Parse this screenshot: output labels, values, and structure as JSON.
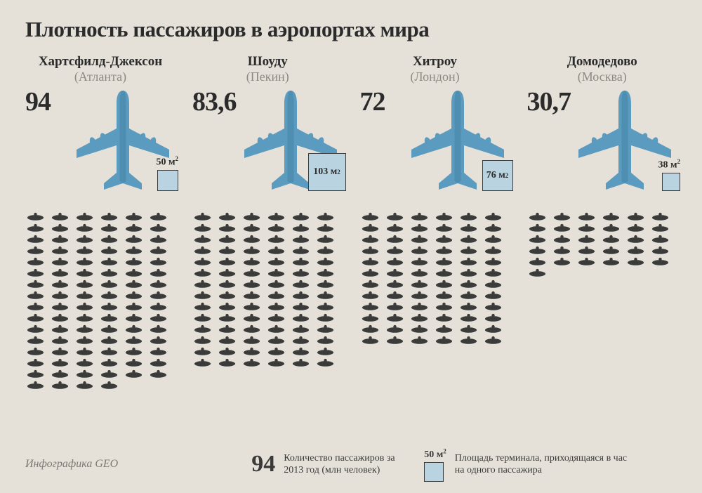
{
  "title": "Плотность пассажиров в аэропортах мира",
  "colors": {
    "background": "#e5e1d8",
    "text": "#2b2b2b",
    "muted": "#8c8a84",
    "plane": "#5a9bbf",
    "plane_dark": "#3d7a9a",
    "area_box_fill": "#b9d4e0",
    "area_box_border": "#3a3a3a",
    "person": "#3b3b3b"
  },
  "airports": [
    {
      "name": "Хартсфилд-Джексон",
      "city": "(Атланта)",
      "passengers": "94",
      "area_label": "50 м²",
      "area_box_size": 30,
      "people_count": 94,
      "people_cols": 6
    },
    {
      "name": "Шоуду",
      "city": "(Пекин)",
      "passengers": "83,6",
      "area_label": "103 м²",
      "area_box_size": 54,
      "people_count": 84,
      "people_cols": 6
    },
    {
      "name": "Хитроу",
      "city": "(Лондон)",
      "passengers": "72",
      "area_label": "76 м²",
      "area_box_size": 44,
      "people_count": 72,
      "people_cols": 6
    },
    {
      "name": "Домодедово",
      "city": "(Москва)",
      "passengers": "30,7",
      "area_label": "38 м²",
      "area_box_size": 26,
      "people_count": 31,
      "people_cols": 6
    }
  ],
  "legend": {
    "passengers_example": "94",
    "passengers_text": "Количество пассажиров за 2013 год (млн человек)",
    "area_example": "50 м²",
    "area_text": "Площадь терминала, приходящаяся в час на одного пассажира"
  },
  "credit": "Инфографика GEO",
  "plane_svg_viewbox": "0 0 100 100",
  "person_svg_viewbox": "0 0 30 12"
}
